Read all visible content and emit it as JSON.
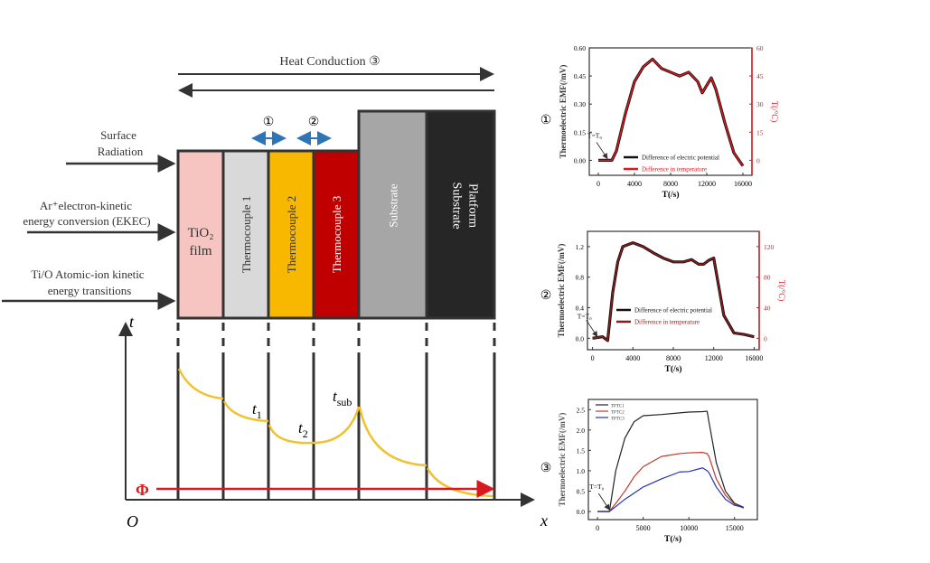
{
  "diagram": {
    "heat_conduction_label": "Heat Conduction ③",
    "marker_1": "①",
    "marker_2": "②",
    "inputs": [
      {
        "line1": "Surface",
        "line2": "Radiation"
      },
      {
        "line1": "Ar⁺electron-kinetic",
        "line2": "energy conversion (EKEC)"
      },
      {
        "line1": "Ti/O Atomic-ion kinetic",
        "line2": "energy transitions"
      }
    ],
    "layers": [
      {
        "label": "TiO₂",
        "label2": "film",
        "color": "#f6c5c1",
        "vertical": false
      },
      {
        "label": "Thermocouple 1",
        "color": "#d9d9d9",
        "vertical": true
      },
      {
        "label": "Thermocouple 2",
        "color": "#f8b800",
        "vertical": true
      },
      {
        "label": "Thermocouple 3",
        "color": "#c00000",
        "vertical": true
      },
      {
        "label": "Substrate",
        "color": "#a6a6a6",
        "vertical": true
      },
      {
        "label": "Substrate",
        "label2": "Platform",
        "color": "#262626",
        "vertical": true
      }
    ],
    "axis_t": "t",
    "axis_x": "x",
    "origin": "O",
    "flux_label": "Φ",
    "t1_label": "t",
    "t1_sub": "1",
    "t2_label": "t",
    "t2_sub": "2",
    "tsub_label": "t",
    "tsub_sub": "sub",
    "curve_color": "#f0c232",
    "flux_color": "#d71920"
  },
  "chart_data": [
    {
      "type": "line",
      "marker": "①",
      "xlabel": "T(/s)",
      "ylabel": "Thermoelectric EMF(/mV)",
      "ylabel_right": "T(/°C)",
      "xlim": [
        -1000,
        17000
      ],
      "ylim": [
        -0.08,
        0.6
      ],
      "ylim_right": [
        -8,
        60
      ],
      "xticks": [
        0,
        4000,
        8000,
        12000,
        16000
      ],
      "yticks": [
        "0.00",
        "0.15",
        "0.30",
        "0.45",
        "0.60"
      ],
      "yticks_right": [
        "0",
        "15",
        "30",
        "45",
        "60"
      ],
      "annotation": "T=T₀",
      "legend": [
        "Difference of electric potential",
        "Difference in temperature"
      ],
      "x": [
        0,
        1000,
        1500,
        2000,
        3000,
        4000,
        5000,
        6000,
        7000,
        8000,
        9000,
        10000,
        11000,
        11500,
        12000,
        12500,
        13000,
        14000,
        15000,
        16000
      ],
      "series": [
        {
          "name": "Difference of electric potential",
          "color": "#111111",
          "values": [
            0,
            0,
            0,
            0.05,
            0.25,
            0.42,
            0.5,
            0.54,
            0.49,
            0.47,
            0.45,
            0.47,
            0.42,
            0.36,
            0.4,
            0.44,
            0.38,
            0.2,
            0.04,
            -0.03
          ]
        },
        {
          "name": "Difference in temperature",
          "color": "#d71920",
          "values": [
            0,
            0,
            0,
            0.05,
            0.25,
            0.42,
            0.5,
            0.54,
            0.49,
            0.47,
            0.45,
            0.47,
            0.42,
            0.36,
            0.4,
            0.44,
            0.38,
            0.2,
            0.04,
            -0.03
          ]
        }
      ]
    },
    {
      "type": "line",
      "marker": "②",
      "xlabel": "T(/s)",
      "ylabel": "Thermoelectric EMF(/mV)",
      "ylabel_right": "T(/°C)",
      "xlim": [
        -500,
        16500
      ],
      "ylim": [
        -0.15,
        1.4
      ],
      "ylim_right": [
        -15,
        140
      ],
      "xticks": [
        0,
        4000,
        8000,
        12000,
        16000
      ],
      "yticks": [
        "0.0",
        "0.4",
        "0.8",
        "1.2"
      ],
      "yticks_right": [
        "0",
        "40",
        "80",
        "120"
      ],
      "annotation": "T=T₀",
      "legend": [
        "Difference of electric potential",
        "Difference in temperature"
      ],
      "x": [
        0,
        1000,
        1500,
        2000,
        2500,
        3000,
        4000,
        5000,
        6000,
        7000,
        8000,
        9000,
        9800,
        10500,
        11000,
        11500,
        12000,
        12200,
        13000,
        14000,
        15000,
        16000
      ],
      "series": [
        {
          "name": "Difference of electric potential",
          "color": "#111111",
          "values": [
            0,
            0.02,
            -0.03,
            0.6,
            1.0,
            1.2,
            1.25,
            1.2,
            1.12,
            1.05,
            1.0,
            1.0,
            1.03,
            0.97,
            0.97,
            1.02,
            1.05,
            0.9,
            0.3,
            0.07,
            0.05,
            0.02
          ]
        },
        {
          "name": "Difference in temperature",
          "color": "#8b1a1a",
          "values": [
            0,
            0.02,
            -0.03,
            0.6,
            1.0,
            1.2,
            1.25,
            1.2,
            1.12,
            1.05,
            1.0,
            1.0,
            1.03,
            0.97,
            0.97,
            1.02,
            1.05,
            0.9,
            0.3,
            0.07,
            0.05,
            0.02
          ]
        }
      ]
    },
    {
      "type": "line",
      "marker": "③",
      "xlabel": "T(/s)",
      "ylabel": "Thermoelectric EMF(/mV)",
      "xlim": [
        -1000,
        17500
      ],
      "ylim": [
        -0.2,
        2.75
      ],
      "xticks": [
        0,
        5000,
        10000,
        15000
      ],
      "yticks": [
        "0.0",
        "0.5",
        "1.0",
        "1.5",
        "2.0",
        "2.5"
      ],
      "annotation": "T=T₀",
      "legend": [
        "TPTC1",
        "TPTC2",
        "TPTC3"
      ],
      "x": [
        0,
        1300,
        2000,
        3000,
        4000,
        5000,
        7000,
        9000,
        10000,
        11500,
        12000,
        12200,
        13000,
        14000,
        15000,
        16000
      ],
      "series": [
        {
          "name": "TPTC1",
          "color": "#222222",
          "values": [
            0,
            0,
            1.0,
            1.8,
            2.2,
            2.35,
            2.38,
            2.42,
            2.44,
            2.45,
            2.46,
            2.2,
            1.2,
            0.5,
            0.2,
            0.1
          ]
        },
        {
          "name": "TPTC2",
          "color": "#c0392b",
          "values": [
            0,
            0,
            0.2,
            0.5,
            0.85,
            1.1,
            1.35,
            1.42,
            1.44,
            1.45,
            1.42,
            1.35,
            0.8,
            0.4,
            0.18,
            0.08
          ]
        },
        {
          "name": "TPTC3",
          "color": "#2233bb",
          "values": [
            0,
            0,
            0.12,
            0.3,
            0.45,
            0.6,
            0.8,
            0.97,
            0.98,
            1.07,
            1.0,
            0.95,
            0.6,
            0.3,
            0.15,
            0.1
          ]
        }
      ]
    }
  ]
}
